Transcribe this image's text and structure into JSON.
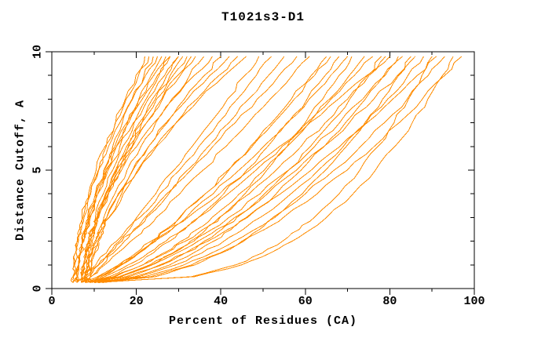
{
  "chart_data": {
    "type": "line",
    "title": "T1021s3-D1",
    "xlabel": "Percent of Residues (CA)",
    "ylabel": "Distance Cutoff, A",
    "xlim": [
      0,
      100
    ],
    "ylim": [
      0,
      10
    ],
    "grid": false,
    "legend": "none",
    "background_color": "#ffffff",
    "axis_color": "#000000",
    "curve_color": "#ff8c00",
    "x_ticks_major": [
      0,
      20,
      40,
      60,
      80,
      100
    ],
    "x_ticks_minor": [
      10,
      30,
      50,
      70,
      90
    ],
    "y_ticks_major": [
      0,
      5,
      10
    ],
    "y_ticks_minor": [
      1,
      2,
      3,
      4,
      6,
      7,
      8,
      9
    ],
    "wiggle_amplitude_percent": 0.55,
    "cutoff_levels": [
      0.25,
      0.5,
      1,
      1.5,
      2,
      2.5,
      3,
      4,
      5,
      6,
      7,
      8,
      9,
      9.8
    ],
    "curves": [
      [
        5,
        5.1,
        5.4,
        5.8,
        6.3,
        7,
        7.6,
        9.2,
        11,
        12.9,
        15.1,
        17.4,
        19.9,
        22
      ],
      [
        5,
        5,
        5.2,
        5.6,
        6,
        6.5,
        7.2,
        8.7,
        10.5,
        12.6,
        15,
        17.6,
        20.5,
        23
      ],
      [
        6,
        6.1,
        6.4,
        6.8,
        7.4,
        8.1,
        8.8,
        10.4,
        12.3,
        14.4,
        16.7,
        19.1,
        21.8,
        24
      ],
      [
        5,
        5,
        5.3,
        5.6,
        6.1,
        6.7,
        7.4,
        9.1,
        11.1,
        13.4,
        16.1,
        19,
        22.2,
        25
      ],
      [
        6,
        6.1,
        6.4,
        6.9,
        7.6,
        8.3,
        9.1,
        10.9,
        13,
        15.3,
        17.9,
        20.6,
        23.5,
        26
      ],
      [
        6,
        6,
        6.3,
        6.7,
        7.2,
        7.8,
        8.5,
        10.3,
        12.4,
        14.9,
        17.7,
        20.7,
        24.1,
        27
      ],
      [
        7,
        7.1,
        7.5,
        8,
        8.6,
        9.4,
        10.3,
        12.2,
        14.4,
        16.8,
        19.5,
        22.3,
        25.4,
        28
      ],
      [
        6,
        6,
        6.3,
        6.7,
        7.2,
        7.9,
        8.7,
        10.5,
        12.7,
        15.3,
        18.2,
        21.4,
        25,
        28
      ],
      [
        7,
        7.1,
        7.5,
        8.1,
        8.8,
        9.6,
        10.6,
        12.7,
        15.1,
        17.7,
        20.7,
        23.8,
        27.2,
        30
      ],
      [
        6,
        6,
        6.3,
        6.8,
        7.3,
        8.1,
        8.9,
        10.9,
        13.3,
        16.1,
        19.3,
        22.8,
        26.7,
        30
      ],
      [
        7,
        7.1,
        7.5,
        8.1,
        8.9,
        9.8,
        10.7,
        12.9,
        15.4,
        18.2,
        21.3,
        24.5,
        28,
        31
      ],
      [
        8,
        8,
        8.3,
        8.8,
        9.3,
        10.1,
        10.9,
        12.9,
        15.3,
        18.1,
        21.3,
        24.8,
        28.7,
        32
      ],
      [
        7,
        7.1,
        7.6,
        8.2,
        9,
        10,
        11,
        13.4,
        16.1,
        19.1,
        22.4,
        26,
        29.8,
        33
      ],
      [
        8,
        8.1,
        8.3,
        8.8,
        9.5,
        10.2,
        11.1,
        13.3,
        15.9,
        19,
        22.4,
        26.2,
        30.4,
        34
      ],
      [
        8,
        8.1,
        8.6,
        9.3,
        10.2,
        11.2,
        12.3,
        14.9,
        17.8,
        21.1,
        24.6,
        28.4,
        32.6,
        36
      ],
      [
        7,
        7.1,
        7.4,
        8,
        8.7,
        9.7,
        10.8,
        13.3,
        16.5,
        20.1,
        24.2,
        28.7,
        33.7,
        38
      ],
      [
        8,
        8.1,
        8.7,
        9.5,
        10.5,
        11.7,
        13,
        15.9,
        19.2,
        22.9,
        27,
        31.4,
        36.1,
        40
      ],
      [
        9,
        9.1,
        9.4,
        10.1,
        10.8,
        11.8,
        13,
        15.7,
        19.1,
        22.9,
        27.3,
        32.1,
        37.4,
        42
      ],
      [
        8,
        8.1,
        8.8,
        9.7,
        10.8,
        12.1,
        13.6,
        16.9,
        20.6,
        24.8,
        29.4,
        34.3,
        39.6,
        44
      ],
      [
        9,
        9.1,
        9.5,
        10.2,
        11.1,
        12.2,
        13.5,
        16.5,
        20.3,
        24.6,
        29.5,
        34.9,
        40.9,
        46
      ],
      [
        6,
        7.6,
        10.4,
        12.9,
        15.3,
        17.7,
        20.1,
        24.6,
        28.9,
        33.2,
        37.5,
        41.6,
        45.7,
        49
      ],
      [
        7,
        8.4,
        11.1,
        13.5,
        16,
        18.4,
        20.8,
        25.5,
        30.2,
        34.8,
        39.4,
        43.9,
        48.4,
        52
      ],
      [
        6,
        7.9,
        11,
        13.8,
        16.6,
        19.4,
        22,
        27.2,
        32.1,
        37,
        41.9,
        46.6,
        51.3,
        55
      ],
      [
        8,
        9.3,
        12,
        14.6,
        17.2,
        19.8,
        22.4,
        27.7,
        32.9,
        38.1,
        43.4,
        48.6,
        53.8,
        58
      ],
      [
        7,
        9.1,
        12.5,
        15.6,
        18.7,
        21.7,
        24.7,
        30.3,
        35.8,
        41.2,
        46.5,
        51.7,
        56.9,
        61
      ],
      [
        8,
        11.7,
        16.5,
        20.4,
        24,
        27.3,
        30.4,
        36.3,
        41.7,
        47,
        52,
        56.7,
        61.4,
        65
      ],
      [
        7,
        10.8,
        15.8,
        19.9,
        23.5,
        27,
        30.2,
        36.3,
        41.9,
        47.4,
        52.5,
        57.4,
        62.2,
        66
      ],
      [
        8,
        13.6,
        19.5,
        24,
        27.9,
        31.5,
        34.7,
        40.7,
        46.1,
        51.1,
        55.9,
        60.4,
        64.7,
        68
      ],
      [
        7,
        11.1,
        16.4,
        20.7,
        24.6,
        28.4,
        31.8,
        38.2,
        44.3,
        50.1,
        55.6,
        60.9,
        66,
        70
      ],
      [
        8,
        16.4,
        23.6,
        28.6,
        32.8,
        36.5,
        39.8,
        45.7,
        50.9,
        55.7,
        60,
        64.1,
        68,
        71
      ],
      [
        9,
        15,
        21.5,
        26.4,
        30.6,
        34.4,
        37.9,
        44.4,
        50.3,
        55.7,
        60.9,
        65.7,
        70.4,
        74
      ],
      [
        8,
        12.4,
        18.1,
        22.8,
        27,
        31.1,
        34.7,
        41.7,
        48.3,
        54.5,
        60.4,
        66.1,
        71.6,
        76
      ],
      [
        9,
        18.2,
        26.1,
        31.6,
        36.1,
        40.2,
        43.8,
        50.3,
        56,
        61.2,
        66,
        70.5,
        74.8,
        78
      ],
      [
        8,
        14.6,
        21.6,
        27,
        31.6,
        35.8,
        39.6,
        46.7,
        53.1,
        59,
        64.7,
        70,
        75.1,
        79
      ],
      [
        9,
        11.7,
        16.2,
        20.4,
        24.4,
        28.4,
        32.2,
        39.7,
        46.8,
        53.9,
        61,
        67.8,
        74.6,
        80
      ],
      [
        10,
        19.6,
        27.9,
        33.5,
        38.3,
        42.5,
        46.3,
        53.1,
        59,
        64.5,
        69.5,
        74.2,
        78.6,
        82
      ],
      [
        9,
        15.9,
        23.2,
        28.8,
        33.6,
        37.9,
        41.9,
        49.3,
        56,
        62.2,
        68.1,
        73.6,
        78.9,
        83
      ],
      [
        10,
        24.5,
        33.9,
        40.1,
        45,
        49.2,
        52.8,
        59.3,
        64.8,
        69.7,
        74.1,
        78.3,
        82.1,
        85
      ],
      [
        9,
        16.2,
        23.8,
        29.6,
        34.6,
        39.1,
        43.3,
        51,
        57.9,
        64.4,
        70.4,
        76.2,
        81.8,
        86
      ],
      [
        10,
        20.5,
        29.3,
        35.5,
        40.7,
        45.3,
        49.3,
        56.6,
        63.1,
        69,
        74.4,
        79.5,
        84.3,
        88
      ],
      [
        11,
        33,
        43.5,
        49.8,
        54.6,
        58.6,
        62.1,
        68,
        72.9,
        77.2,
        81,
        84.4,
        87.6,
        90
      ],
      [
        10,
        17.5,
        25.6,
        31.6,
        36.9,
        41.7,
        46,
        54.1,
        61.4,
        68.2,
        74.6,
        80.7,
        86.5,
        91
      ],
      [
        11,
        22,
        31.3,
        37.8,
        43.2,
        48.1,
        52.3,
        60,
        66.8,
        73.1,
        78.7,
        84.1,
        89.1,
        93
      ],
      [
        10,
        33.7,
        44.9,
        51.7,
        56.9,
        61.3,
        65,
        71.3,
        76.6,
        81.2,
        85.3,
        89,
        92.5,
        95
      ],
      [
        12,
        23.4,
        33.1,
        39.8,
        45.4,
        50.4,
        54.8,
        62.8,
        69.9,
        76.3,
        82.2,
        87.7,
        93,
        97
      ]
    ]
  }
}
